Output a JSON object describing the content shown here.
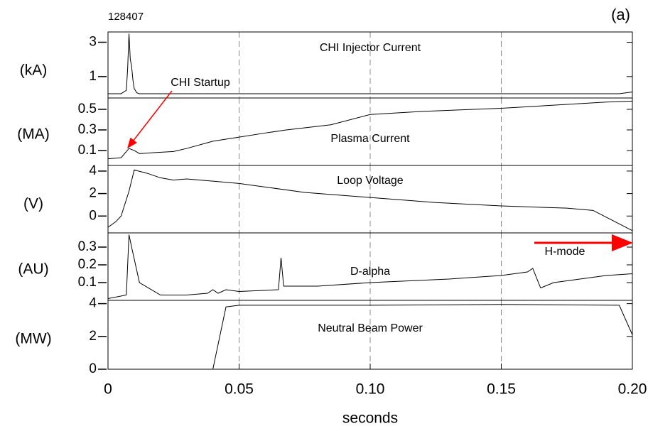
{
  "chart_data": [
    {
      "type": "line",
      "title": "CHI Injector Current",
      "ylabel": "(kA)",
      "annotations": [
        "128407",
        "(a)"
      ],
      "xlim": [
        0,
        0.2
      ],
      "xticks": [
        0,
        0.05,
        {
          "value": 0.1,
          "label": "0.10"
        },
        0.15,
        {
          "value": 0.2,
          "label": "0.20"
        }
      ],
      "grid": true,
      "ylim": [
        -0.25,
        3.6
      ],
      "yticks": [
        3,
        1
      ],
      "x": [
        0,
        0.005,
        0.007,
        0.0075,
        0.008,
        0.0085,
        0.009,
        0.0095,
        0.01,
        0.011,
        0.012,
        0.05,
        0.1,
        0.15,
        0.195,
        0.2
      ],
      "series": [
        {
          "color": "#000000",
          "values": [
            0,
            0,
            0.2,
            1.5,
            3.5,
            2.0,
            1.6,
            0.8,
            0.3,
            0.05,
            0,
            0,
            0,
            0,
            0,
            0.1
          ]
        }
      ]
    },
    {
      "type": "line",
      "title": "Plasma Current",
      "ylabel": "(MA)",
      "annotations": [
        "CHI Startup"
      ],
      "xlim": [
        0,
        0.2
      ],
      "xticks": [
        0,
        0.05,
        {
          "value": 0.1,
          "label": "0.10"
        },
        0.15,
        {
          "value": 0.2,
          "label": "0.20"
        }
      ],
      "grid": true,
      "ylim": [
        -0.045,
        0.61
      ],
      "yticks": [
        0.5,
        0.3,
        0.1
      ],
      "x": [
        0,
        0.005,
        0.008,
        0.01,
        0.012,
        0.018,
        0.025,
        0.03,
        0.04,
        0.05,
        0.06,
        0.068,
        0.085,
        0.1,
        0.12,
        0.15,
        0.17,
        0.19,
        0.2
      ],
      "series": [
        {
          "color": "#000000",
          "values": [
            0.02,
            0.03,
            0.12,
            0.1,
            0.07,
            0.08,
            0.09,
            0.12,
            0.19,
            0.23,
            0.27,
            0.3,
            0.35,
            0.45,
            0.48,
            0.51,
            0.54,
            0.57,
            0.58
          ]
        }
      ]
    },
    {
      "type": "line",
      "title": "Loop Voltage",
      "ylabel": "(V)",
      "xlim": [
        0,
        0.2
      ],
      "xticks": [
        0,
        0.05,
        {
          "value": 0.1,
          "label": "0.10"
        },
        0.15,
        {
          "value": 0.2,
          "label": "0.20"
        }
      ],
      "grid": true,
      "ylim": [
        -1.5,
        4.5
      ],
      "yticks": [
        4,
        2,
        0
      ],
      "x": [
        0,
        0.003,
        0.005,
        0.008,
        0.01,
        0.015,
        0.02,
        0.025,
        0.03,
        0.04,
        0.05,
        0.075,
        0.1,
        0.125,
        0.15,
        0.175,
        0.185,
        0.19,
        0.195,
        0.2
      ],
      "series": [
        {
          "color": "#000000",
          "values": [
            -1.0,
            -0.5,
            0,
            2.2,
            4.1,
            3.8,
            3.4,
            3.2,
            3.3,
            3.1,
            2.9,
            2.1,
            1.65,
            1.2,
            0.9,
            0.7,
            0.5,
            -0.1,
            -0.7,
            -1.3
          ]
        }
      ]
    },
    {
      "type": "line",
      "title": "D-alpha",
      "ylabel": "(AU)",
      "annotations": [
        "H-mode"
      ],
      "xlim": [
        0,
        0.2
      ],
      "xticks": [
        0,
        0.05,
        {
          "value": 0.1,
          "label": "0.10"
        },
        0.15,
        {
          "value": 0.2,
          "label": "0.20"
        }
      ],
      "grid": true,
      "ylim": [
        0,
        0.38
      ],
      "yticks": [
        0.3,
        0.2,
        0.1
      ],
      "x": [
        0,
        0.007,
        0.008,
        0.009,
        0.012,
        0.02,
        0.03,
        0.038,
        0.04,
        0.042,
        0.045,
        0.05,
        0.065,
        0.066,
        0.067,
        0.08,
        0.1,
        0.13,
        0.15,
        0.16,
        0.162,
        0.165,
        0.17,
        0.18,
        0.19,
        0.2
      ],
      "series": [
        {
          "color": "#000000",
          "values": [
            0.01,
            0.03,
            0.37,
            0.3,
            0.1,
            0.03,
            0.03,
            0.04,
            0.06,
            0.04,
            0.06,
            0.05,
            0.06,
            0.24,
            0.08,
            0.08,
            0.1,
            0.12,
            0.14,
            0.16,
            0.18,
            0.07,
            0.1,
            0.12,
            0.14,
            0.15
          ]
        }
      ]
    },
    {
      "type": "line",
      "title": "Neutral Beam Power",
      "ylabel": "(MW)",
      "xlabel": "seconds",
      "xlim": [
        0,
        0.2
      ],
      "xticks": [
        0,
        0.05,
        {
          "value": 0.1,
          "label": "0.10"
        },
        0.15,
        {
          "value": 0.2,
          "label": "0.20"
        }
      ],
      "grid": true,
      "ylim": [
        0,
        4.2
      ],
      "yticks": [
        4,
        2,
        0
      ],
      "x": [
        0,
        0.04,
        0.045,
        0.05,
        0.1,
        0.15,
        0.195,
        0.2
      ],
      "series": [
        {
          "color": "#000000",
          "values": [
            0,
            0,
            3.8,
            3.9,
            3.9,
            3.95,
            3.9,
            2.1
          ]
        }
      ]
    }
  ]
}
